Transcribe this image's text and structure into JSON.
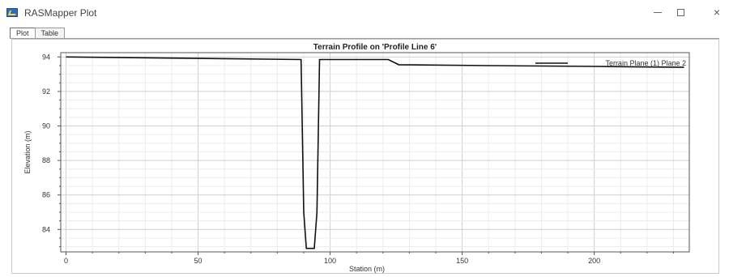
{
  "window": {
    "title": "RASMapper Plot",
    "icons": {
      "app": "rasmapper-app-icon",
      "minimize": "minimize-icon",
      "maximize": "maximize-icon",
      "close": "close-icon"
    },
    "close_glyph": "×"
  },
  "tabs": [
    {
      "label": "Plot",
      "active": true
    },
    {
      "label": "Table",
      "active": false
    }
  ],
  "chart_data": {
    "type": "line",
    "title": "Terrain Profile on 'Profile Line 6'",
    "xlabel": "Station (m)",
    "ylabel": "Elevation (m)",
    "xlim": [
      -2,
      236
    ],
    "ylim": [
      82.7,
      94.25
    ],
    "x_ticks": [
      0,
      50,
      100,
      150,
      200
    ],
    "y_ticks": [
      84,
      86,
      88,
      90,
      92,
      94
    ],
    "x_tick_labels": [
      "0",
      "50",
      "100",
      "150",
      "200"
    ],
    "y_tick_labels": [
      "84",
      "86",
      "88",
      "90",
      "92",
      "94"
    ],
    "grid": true,
    "legend_position": "top-right",
    "series": [
      {
        "name": "Terrain Plane (1) Plane 2",
        "color": "#111111",
        "x": [
          0,
          89,
          90,
          91,
          94,
          95,
          96,
          122,
          126,
          160,
          200,
          234
        ],
        "y": [
          94.0,
          93.85,
          85.0,
          82.9,
          82.9,
          85.0,
          93.85,
          93.85,
          93.55,
          93.5,
          93.45,
          93.4
        ]
      }
    ]
  }
}
